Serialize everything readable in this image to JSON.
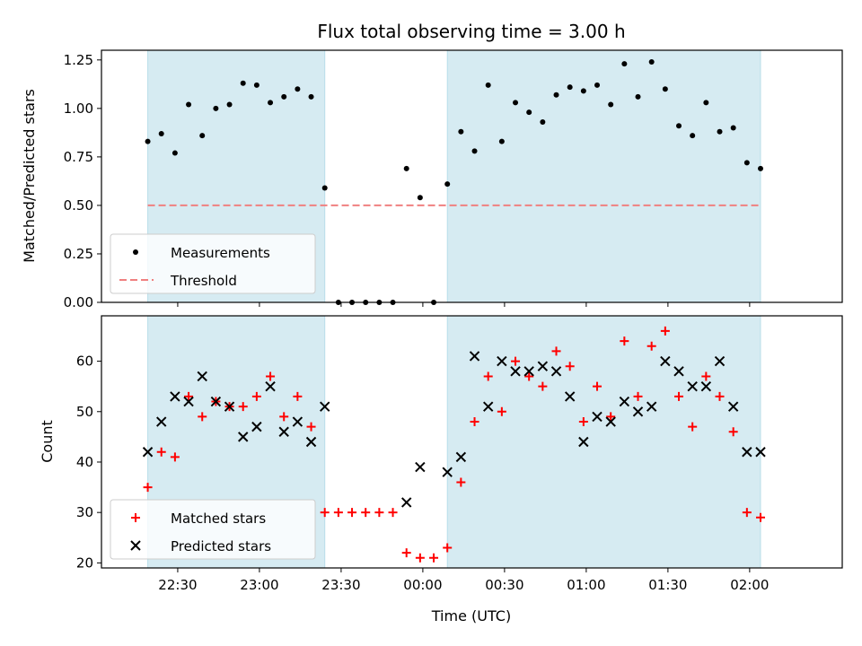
{
  "chart_data": [
    {
      "type": "scatter",
      "title": "Flux total observing time = 3.00 h",
      "xlabel": "",
      "ylabel": "Matched/Predicted stars",
      "ylim": [
        0,
        1.3
      ],
      "yticks": [
        "0.00",
        "0.25",
        "0.50",
        "0.75",
        "1.00",
        "1.25"
      ],
      "xticks": [
        "22:30",
        "23:00",
        "23:30",
        "00:00",
        "00:30",
        "01:00",
        "01:30",
        "02:00"
      ],
      "threshold": 0.5,
      "legend": [
        "Measurements",
        "Threshold"
      ],
      "legend_position": "lower-left",
      "series": [
        {
          "name": "Measurements",
          "marker": "dot",
          "color": "#000000",
          "x": [
            "22:19",
            "22:24",
            "22:29",
            "22:34",
            "22:39",
            "22:44",
            "22:49",
            "22:54",
            "22:59",
            "23:04",
            "23:09",
            "23:14",
            "23:19",
            "23:24",
            "23:29",
            "23:34",
            "23:39",
            "23:44",
            "23:49",
            "23:54",
            "23:59",
            "00:04",
            "00:09",
            "00:14",
            "00:19",
            "00:24",
            "00:29",
            "00:34",
            "00:39",
            "00:44",
            "00:49",
            "00:54",
            "00:59",
            "01:04",
            "01:09",
            "01:14",
            "01:19",
            "01:24",
            "01:29",
            "01:34",
            "01:39",
            "01:44",
            "01:49",
            "01:54",
            "01:59",
            "02:04"
          ],
          "values": [
            0.83,
            0.87,
            0.77,
            1.02,
            0.86,
            1.0,
            1.02,
            1.13,
            1.12,
            1.03,
            1.06,
            1.1,
            1.06,
            0.59,
            0.0,
            0.0,
            0.0,
            0.0,
            0.0,
            0.69,
            0.54,
            0.0,
            0.61,
            0.88,
            0.78,
            1.12,
            0.83,
            1.03,
            0.98,
            0.93,
            1.07,
            1.11,
            1.09,
            1.12,
            1.02,
            1.23,
            1.06,
            1.24,
            1.1,
            0.91,
            0.86,
            1.03,
            0.88,
            0.9,
            0.72,
            0.69
          ]
        },
        {
          "name": "Threshold",
          "marker": "dashed-line",
          "color": "#f08080",
          "values": [
            0.5
          ]
        }
      ],
      "shaded_regions": [
        [
          "22:19",
          "23:24"
        ],
        [
          "00:09",
          "02:04"
        ]
      ]
    },
    {
      "type": "scatter",
      "title": "",
      "xlabel": "Time (UTC)",
      "ylabel": "Count",
      "ylim": [
        19,
        69
      ],
      "yticks": [
        "20",
        "30",
        "40",
        "50",
        "60"
      ],
      "xticks": [
        "22:30",
        "23:00",
        "23:30",
        "00:00",
        "00:30",
        "01:00",
        "01:30",
        "02:00"
      ],
      "legend": [
        "Matched stars",
        "Predicted stars"
      ],
      "legend_position": "lower-left",
      "series": [
        {
          "name": "Matched stars",
          "marker": "plus",
          "color": "#ff0000",
          "x": [
            "22:19",
            "22:24",
            "22:29",
            "22:34",
            "22:39",
            "22:44",
            "22:49",
            "22:54",
            "22:59",
            "23:04",
            "23:09",
            "23:14",
            "23:19",
            "23:24",
            "23:29",
            "23:34",
            "23:39",
            "23:44",
            "23:49",
            "23:54",
            "23:59",
            "00:04",
            "00:09",
            "00:14",
            "00:19",
            "00:24",
            "00:29",
            "00:34",
            "00:39",
            "00:44",
            "00:49",
            "00:54",
            "00:59",
            "01:04",
            "01:09",
            "01:14",
            "01:19",
            "01:24",
            "01:29",
            "01:34",
            "01:39",
            "01:44",
            "01:49",
            "01:54",
            "01:59",
            "02:04"
          ],
          "values": [
            35,
            42,
            41,
            53,
            49,
            52,
            51,
            51,
            53,
            57,
            49,
            53,
            47,
            30,
            30,
            30,
            30,
            30,
            30,
            22,
            21,
            21,
            23,
            36,
            48,
            57,
            50,
            60,
            57,
            55,
            62,
            59,
            48,
            55,
            49,
            64,
            53,
            63,
            66,
            53,
            47,
            57,
            53,
            46,
            30,
            29
          ]
        },
        {
          "name": "Predicted stars",
          "marker": "x",
          "color": "#000000",
          "x": [
            "22:19",
            "22:24",
            "22:29",
            "22:34",
            "22:39",
            "22:44",
            "22:49",
            "22:54",
            "22:59",
            "23:04",
            "23:09",
            "23:14",
            "23:19",
            "23:24",
            "23:54",
            "23:59",
            "00:09",
            "00:14",
            "00:19",
            "00:24",
            "00:29",
            "00:34",
            "00:39",
            "00:44",
            "00:49",
            "00:54",
            "00:59",
            "01:04",
            "01:09",
            "01:14",
            "01:19",
            "01:24",
            "01:29",
            "01:34",
            "01:39",
            "01:44",
            "01:49",
            "01:54",
            "01:59",
            "02:04"
          ],
          "values": [
            42,
            48,
            53,
            52,
            57,
            52,
            51,
            45,
            47,
            55,
            46,
            48,
            44,
            51,
            32,
            39,
            38,
            41,
            61,
            51,
            60,
            58,
            58,
            59,
            58,
            53,
            44,
            49,
            48,
            52,
            50,
            51,
            60,
            58,
            55,
            55,
            60,
            51,
            42,
            42
          ]
        }
      ],
      "shaded_regions": [
        [
          "22:19",
          "23:24"
        ],
        [
          "00:09",
          "02:04"
        ]
      ]
    }
  ]
}
